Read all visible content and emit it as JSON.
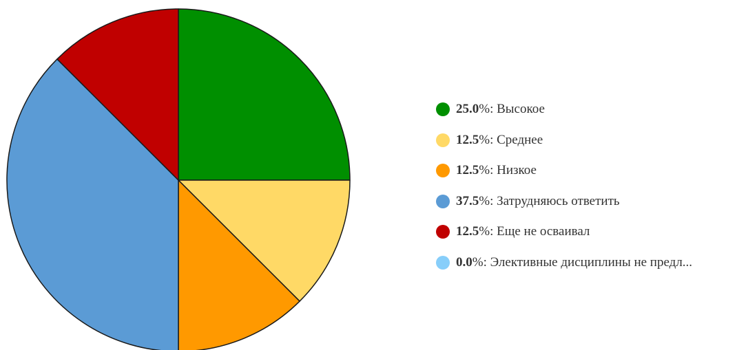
{
  "chart_data": {
    "type": "pie",
    "title": "",
    "slices": [
      {
        "label": "Высокое",
        "percent_label": "25.0",
        "value": 25.0,
        "color": "#008f00"
      },
      {
        "label": "Среднее",
        "percent_label": "12.5",
        "value": 12.5,
        "color": "#ffd966"
      },
      {
        "label": "Низкое",
        "percent_label": "12.5",
        "value": 12.5,
        "color": "#ff9900"
      },
      {
        "label": "Затрудняюсь ответить",
        "percent_label": "37.5",
        "value": 37.5,
        "color": "#5b9bd5"
      },
      {
        "label": "Еще не осваивал",
        "percent_label": "12.5",
        "value": 12.5,
        "color": "#c00000"
      },
      {
        "label": "Элективные дисциплины не предл...",
        "percent_label": "0.0",
        "value": 0.0,
        "color": "#87cefa"
      }
    ],
    "start_angle": "12 o'clock",
    "direction": "clockwise",
    "legend_position": "right"
  }
}
